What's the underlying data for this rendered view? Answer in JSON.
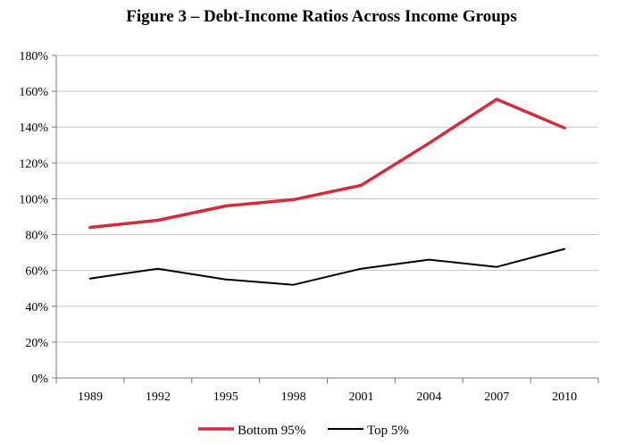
{
  "chart_data": {
    "type": "line",
    "title": "Figure 3 – Debt-Income Ratios Across Income Groups",
    "xlabel": "",
    "ylabel": "",
    "categories": [
      "1989",
      "1992",
      "1995",
      "1998",
      "2001",
      "2004",
      "2007",
      "2010"
    ],
    "ylim": [
      0,
      180
    ],
    "yticks": [
      0,
      20,
      40,
      60,
      80,
      100,
      120,
      140,
      160,
      180
    ],
    "ytick_labels": [
      "0%",
      "20%",
      "40%",
      "60%",
      "80%",
      "100%",
      "120%",
      "140%",
      "160%",
      "180%"
    ],
    "grid": "horizontal",
    "legend_position": "bottom",
    "series": [
      {
        "name": "Bottom 95%",
        "color": "#d52b3a",
        "values": [
          84,
          88,
          96,
          99.5,
          107.5,
          131,
          155.5,
          139.5
        ]
      },
      {
        "name": "Top 5%",
        "color": "#000000",
        "values": [
          55.5,
          61,
          55,
          52,
          61,
          66,
          62,
          72
        ]
      }
    ]
  }
}
